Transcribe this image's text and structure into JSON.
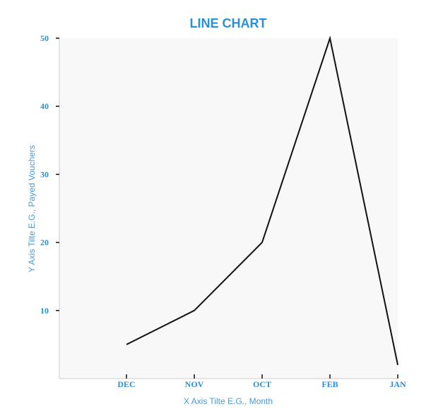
{
  "chart_data": {
    "type": "line",
    "title": "LINE CHART",
    "xlabel": "X Axis Tilte E.G., Month",
    "ylabel": "Y Axis Tilte E.G., Payed Vouchers",
    "categories": [
      "DEC",
      "NOV",
      "OCT",
      "FEB",
      "JAN"
    ],
    "values": [
      5,
      10,
      20,
      50,
      2
    ],
    "y_ticks": [
      10,
      20,
      30,
      40,
      50
    ],
    "ylim": [
      0,
      50
    ],
    "grid": false,
    "legend": "none",
    "colors": {
      "line": "#111111",
      "text": "#2b8fd9",
      "plot_background": "#f8f8f8",
      "axis": "#cccccc"
    }
  }
}
